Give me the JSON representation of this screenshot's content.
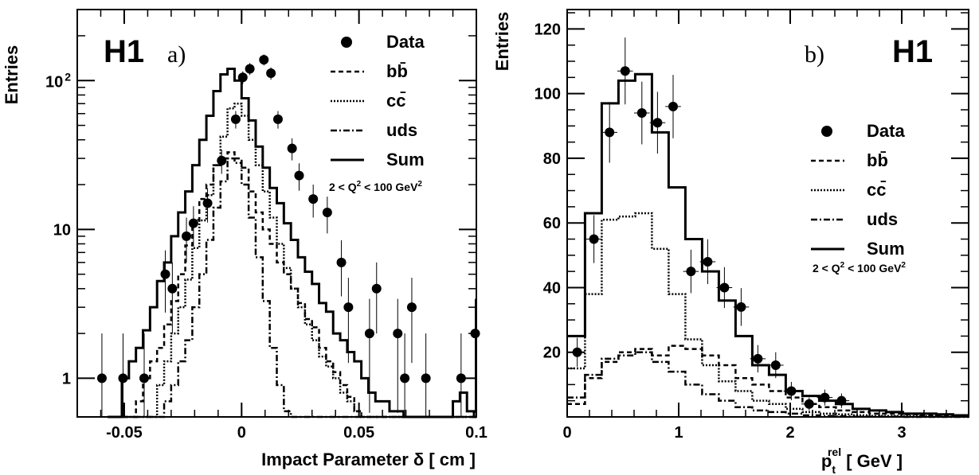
{
  "chart_data": [
    {
      "type": "line",
      "panel_label": "a)",
      "experiment": "H1",
      "xlabel": "Impact Parameter δ [ cm ]",
      "ylabel": "Entries",
      "yscale": "log",
      "xlim": [
        -0.07,
        0.1
      ],
      "ylim": [
        0.55,
        300
      ],
      "xticks": [
        -0.05,
        0,
        0.05,
        0.1
      ],
      "xtick_labels": [
        "-0.05",
        "0",
        "0.05",
        "0.1"
      ],
      "yticks": [
        1,
        10,
        100
      ],
      "ytick_labels": [
        "1",
        "10",
        "10 2"
      ],
      "cut_label": "2 < Q2 < 100 GeV2",
      "legend_position": "top-right",
      "legend": [
        {
          "label": "Data",
          "style": "marker"
        },
        {
          "label": "bb̄",
          "style": "dashed"
        },
        {
          "label": "cc̄",
          "style": "dotted"
        },
        {
          "label": "uds",
          "style": "dashdot"
        },
        {
          "label": "Sum",
          "style": "solid"
        }
      ],
      "data_points": {
        "x": [
          -0.0595,
          -0.0505,
          -0.0415,
          -0.0325,
          -0.0295,
          -0.0235,
          -0.0205,
          -0.0145,
          -0.0085,
          -0.0025,
          0.0005,
          0.0035,
          0.0095,
          0.0125,
          0.0155,
          0.0215,
          0.0245,
          0.0305,
          0.0365,
          0.0425,
          0.0455,
          0.0545,
          0.0575,
          0.0665,
          0.0695,
          0.0725,
          0.0785,
          0.0935,
          0.0995
        ],
        "y": [
          1,
          1,
          1,
          5,
          4,
          9,
          11,
          15,
          29,
          55,
          105,
          120,
          138,
          112,
          55,
          35,
          23,
          16,
          13,
          6,
          3,
          2,
          4,
          2,
          1,
          3,
          1,
          1,
          2
        ]
      },
      "histograms": {
        "bin_edges": [
          -0.057,
          -0.054,
          -0.051,
          -0.048,
          -0.045,
          -0.042,
          -0.039,
          -0.036,
          -0.033,
          -0.03,
          -0.027,
          -0.024,
          -0.021,
          -0.018,
          -0.015,
          -0.012,
          -0.009,
          -0.006,
          -0.003,
          0.0,
          0.003,
          0.006,
          0.009,
          0.012,
          0.015,
          0.018,
          0.021,
          0.024,
          0.027,
          0.03,
          0.033,
          0.036,
          0.039,
          0.042,
          0.045,
          0.048,
          0.051,
          0.054,
          0.057,
          0.06,
          0.063,
          0.066,
          0.069,
          0.072,
          0.075,
          0.078,
          0.081,
          0.084,
          0.087,
          0.09,
          0.093,
          0.096,
          0.099,
          0.1
        ],
        "Sum": [
          0.55,
          0.55,
          1.0,
          1.3,
          1.6,
          2.1,
          3.0,
          4.5,
          6.0,
          9.0,
          13,
          18,
          27,
          40,
          58,
          85,
          110,
          120,
          100,
          76,
          54,
          36,
          26,
          19,
          15,
          11,
          8.5,
          6.5,
          5.2,
          4.3,
          3.2,
          2.8,
          2.0,
          1.8,
          1.5,
          1.3,
          1.0,
          0.8,
          0.7,
          0.7,
          0.6,
          0.6,
          0.55,
          0.55,
          0.55,
          0.55,
          0.55,
          0.55,
          0.55,
          0.7,
          0.8,
          0.6,
          0.55
        ],
        "bb": [
          0.55,
          0.55,
          0.55,
          0.55,
          0.7,
          1.0,
          1.3,
          1.6,
          2.3,
          3.3,
          5.0,
          7.8,
          11.6,
          16,
          20,
          27,
          30,
          33,
          30,
          26,
          18,
          13,
          10,
          8,
          6,
          5,
          4,
          3.2,
          2.5,
          2.2,
          1.6,
          1.3,
          1.1,
          0.9,
          0.75,
          0.6,
          0.55,
          0.55,
          0.55,
          0.55,
          0.55,
          0.55,
          0.55,
          0.55,
          0.55,
          0.55,
          0.55,
          0.55,
          0.55,
          0.55,
          0.55,
          0.55,
          0.55
        ],
        "cc": [
          0.55,
          0.55,
          0.55,
          0.55,
          0.55,
          0.55,
          0.55,
          0.9,
          1.3,
          2.0,
          3.0,
          4.6,
          7.5,
          11.5,
          17,
          27,
          42,
          65,
          70,
          58,
          40,
          27,
          18,
          12,
          8,
          5.5,
          4.0,
          3.0,
          2.3,
          1.8,
          1.4,
          1.2,
          1.0,
          0.8,
          0.7,
          0.6,
          0.55,
          0.55,
          0.55,
          0.55,
          0.55,
          0.55,
          0.55,
          0.55,
          0.55,
          0.55,
          0.55,
          0.55,
          0.55,
          0.55,
          0.55,
          0.55,
          0.55
        ],
        "uds": [
          0.55,
          0.55,
          0.55,
          0.55,
          0.55,
          0.55,
          0.55,
          0.55,
          0.7,
          0.9,
          1.3,
          1.8,
          3.0,
          5.0,
          8.5,
          14,
          21,
          30,
          28,
          20,
          12,
          6.5,
          3.3,
          1.6,
          0.9,
          0.6,
          0.55,
          0.55,
          0.55,
          0.55,
          0.55,
          0.55,
          0.55,
          0.55,
          0.55,
          0.55,
          0.55,
          0.55,
          0.55,
          0.55,
          0.55,
          0.55,
          0.55,
          0.55,
          0.55,
          0.55,
          0.55,
          0.55,
          0.55,
          0.55,
          0.55,
          0.55,
          0.55
        ]
      }
    },
    {
      "type": "line",
      "panel_label": "b)",
      "experiment": "H1",
      "xlabel": "p_t^rel [ GeV ]",
      "ylabel": "Entries",
      "yscale": "linear",
      "xlim": [
        0,
        3.6
      ],
      "ylim": [
        0,
        126
      ],
      "xticks": [
        0,
        1,
        2,
        3
      ],
      "xtick_labels": [
        "0",
        "1",
        "2",
        "3"
      ],
      "yticks": [
        20,
        40,
        60,
        80,
        100,
        120
      ],
      "ytick_labels": [
        "20",
        "40",
        "60",
        "80",
        "100",
        "120"
      ],
      "cut_label": "2 < Q2 < 100 GeV2",
      "legend_position": "right",
      "legend": [
        {
          "label": "Data",
          "style": "marker"
        },
        {
          "label": "bb̄",
          "style": "dashed"
        },
        {
          "label": "cc̄",
          "style": "dotted"
        },
        {
          "label": "uds",
          "style": "dashdot"
        },
        {
          "label": "Sum",
          "style": "solid"
        }
      ],
      "data_points": {
        "x": [
          0.09,
          0.24,
          0.38,
          0.52,
          0.67,
          0.81,
          0.95,
          1.11,
          1.26,
          1.41,
          1.56,
          1.71,
          1.87,
          2.01,
          2.17,
          2.31,
          2.46
        ],
        "y": [
          20,
          55,
          88,
          107,
          94,
          91,
          96,
          45,
          48,
          40,
          34,
          18,
          16,
          8,
          4,
          6,
          5
        ]
      },
      "histograms": {
        "bin_edges": [
          0,
          0.16,
          0.31,
          0.46,
          0.61,
          0.76,
          0.91,
          1.06,
          1.21,
          1.36,
          1.51,
          1.66,
          1.81,
          1.96,
          2.11,
          2.26,
          2.41,
          2.56,
          2.71,
          2.86,
          3.01,
          3.16,
          3.31,
          3.46,
          3.6
        ],
        "Sum": [
          25,
          63,
          97,
          104,
          106,
          88,
          71,
          55,
          45,
          36,
          25,
          16,
          13,
          8,
          6.5,
          5,
          4,
          2.5,
          2,
          1.5,
          1,
          1,
          0.8,
          0.5
        ],
        "bb": [
          4,
          12,
          17,
          20,
          21,
          19,
          22,
          21,
          19,
          16,
          12,
          10,
          8,
          6,
          4,
          3,
          2,
          1.5,
          1,
          1,
          0.8,
          0.5,
          0.5,
          0.3
        ],
        "cc": [
          15,
          38,
          61,
          62,
          63,
          52,
          38,
          24,
          16,
          11,
          8,
          5,
          4,
          2.5,
          1.5,
          1,
          0.8,
          0.5,
          0.3,
          0.3,
          0.2,
          0.2,
          0.1,
          0.1
        ],
        "uds": [
          6,
          13,
          18,
          19,
          20,
          17,
          14,
          10,
          7,
          5,
          3,
          2,
          1.5,
          1,
          0.5,
          0.3,
          0.2,
          0.1,
          0.1,
          0.1,
          0,
          0,
          0,
          0
        ]
      }
    }
  ],
  "legend_symbols": {
    "bbbar": "bb",
    "ccbar": "cc",
    "bar_char": "-"
  },
  "cut_parts": {
    "pre": "2 < Q",
    "sup1": "2",
    "mid": " < 100 GeV",
    "sup2": "2"
  },
  "xlabel_b_parts": {
    "p": "p",
    "sub": "t",
    "sup": "rel",
    "unit": " [ GeV ]"
  },
  "ylabel_a_parts": {
    "ten": "10",
    "exp": "2"
  }
}
